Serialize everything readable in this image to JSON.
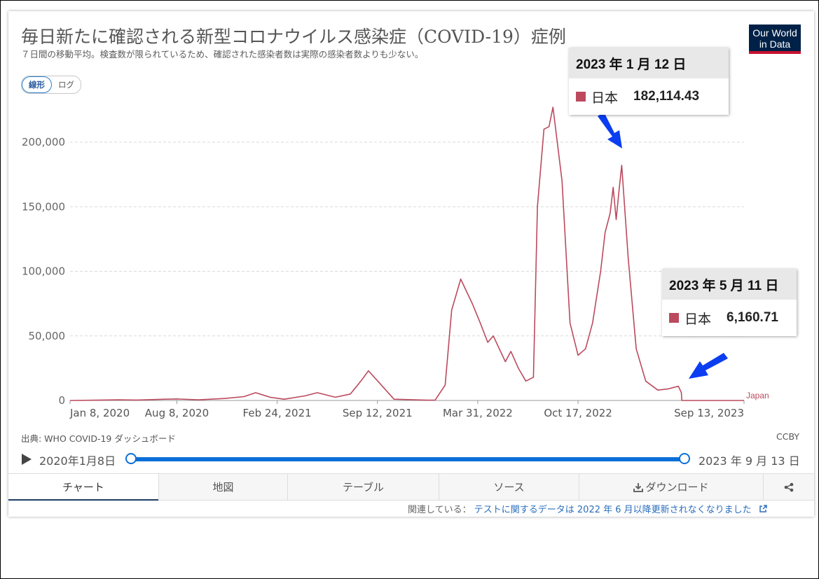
{
  "title": "毎日新たに確認される新型コロナウイルス感染症（COVID-19）症例",
  "subtitle": "７日間の移動平均。検査数が限られているため、確認された感染者数は実際の感染者数よりも少ない。",
  "logo": {
    "line1": "Our World",
    "line2": "in Data"
  },
  "scale_toggle": {
    "linear": "線形",
    "log": "ログ",
    "selected": "linear"
  },
  "tooltips": [
    {
      "date": "2023 年 1 月 12 日",
      "country": "日本",
      "value": "182,114.43"
    },
    {
      "date": "2023 年 5 月 11 日",
      "country": "日本",
      "value": "6,160.71"
    }
  ],
  "source": "出典: WHO COVID-19 ダッシュボード",
  "license": "CCBY",
  "timeline": {
    "start": "2020年1月8日",
    "end": "2023 年 9 月 13 日"
  },
  "tabs": [
    {
      "label": "チャート",
      "active": true
    },
    {
      "label": "地図"
    },
    {
      "label": "テーブル"
    },
    {
      "label": "ソース"
    },
    {
      "label": "ダウンロード",
      "icon": "download-icon"
    },
    {
      "label": "",
      "icon": "share-icon"
    }
  ],
  "footer": {
    "prefix": "関連している：",
    "link": "テストに関するデータは 2022 年 6 月以降更新されなくなりました"
  },
  "colors": {
    "series": "#bb4a5e",
    "arrow": "#0a3ef0",
    "accent": "#0a6fd8"
  },
  "chart_data": {
    "type": "line",
    "title": "毎日新たに確認される新型コロナウイルス感染症（COVID-19）症例",
    "ylim": [
      0,
      225000
    ],
    "yticks": [
      0,
      50000,
      100000,
      150000,
      200000
    ],
    "ytick_labels": [
      "0",
      "50,000",
      "100,000",
      "150,000",
      "200,000"
    ],
    "xticks": [
      "2020-01-08",
      "2020-08-08",
      "2021-02-24",
      "2021-09-12",
      "2022-03-31",
      "2022-10-17",
      "2023-09-13"
    ],
    "xtick_labels": [
      "Jan 8, 2020",
      "Aug 8, 2020",
      "Feb 24, 2021",
      "Sep 12, 2021",
      "Mar 31, 2022",
      "Oct 17, 2022",
      "Sep 13, 2023"
    ],
    "grid": "horizontal dashed",
    "series": [
      {
        "name": "Japan",
        "x": [
          "2020-01-08",
          "2020-04-15",
          "2020-05-20",
          "2020-07-15",
          "2020-08-08",
          "2020-09-20",
          "2020-11-10",
          "2020-12-20",
          "2021-01-12",
          "2021-02-10",
          "2021-03-10",
          "2021-04-20",
          "2021-05-15",
          "2021-06-20",
          "2021-07-20",
          "2021-08-10",
          "2021-08-25",
          "2021-09-15",
          "2021-10-15",
          "2021-12-20",
          "2022-01-05",
          "2022-01-25",
          "2022-02-07",
          "2022-02-25",
          "2022-03-20",
          "2022-04-05",
          "2022-04-20",
          "2022-05-01",
          "2022-05-25",
          "2022-06-05",
          "2022-06-20",
          "2022-07-05",
          "2022-07-20",
          "2022-07-28",
          "2022-08-10",
          "2022-08-20",
          "2022-08-28",
          "2022-09-15",
          "2022-10-01",
          "2022-10-17",
          "2022-11-01",
          "2022-11-15",
          "2022-12-01",
          "2022-12-10",
          "2022-12-20",
          "2022-12-26",
          "2023-01-01",
          "2023-01-06",
          "2023-01-12",
          "2023-01-25",
          "2023-02-10",
          "2023-03-01",
          "2023-03-25",
          "2023-04-15",
          "2023-05-05",
          "2023-05-11",
          "2023-05-12",
          "2023-09-13"
        ],
        "y": [
          0,
          500,
          300,
          1000,
          1200,
          500,
          1500,
          3000,
          6000,
          2500,
          1000,
          3500,
          6000,
          2500,
          5000,
          15000,
          23000,
          14000,
          1000,
          200,
          300,
          12000,
          70000,
          94000,
          75000,
          60000,
          45000,
          50000,
          30000,
          38000,
          25000,
          15000,
          18000,
          150000,
          210000,
          212000,
          227000,
          170000,
          60000,
          35000,
          40000,
          60000,
          100000,
          130000,
          145000,
          165000,
          140000,
          160000,
          182114,
          110000,
          40000,
          15000,
          8000,
          9000,
          11000,
          6160.71,
          0,
          0
        ]
      }
    ]
  }
}
